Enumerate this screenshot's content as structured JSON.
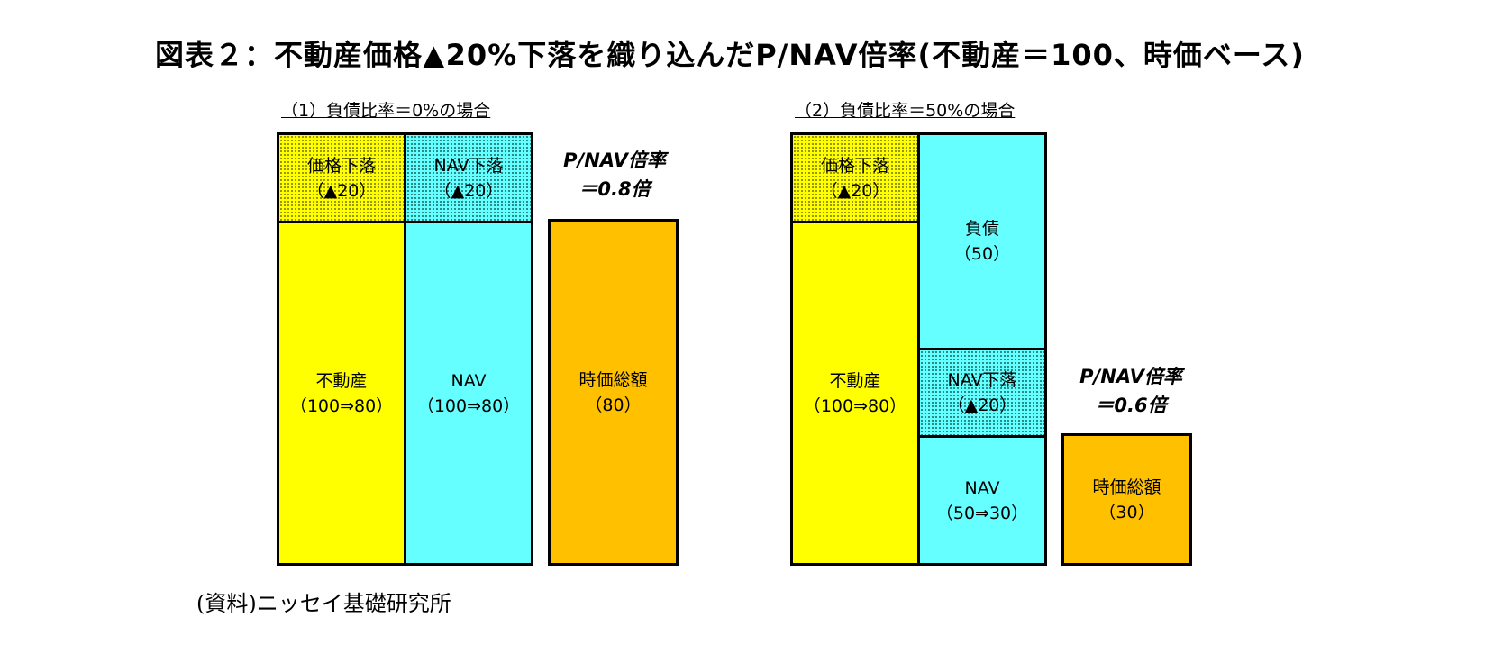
{
  "title": "図表２：不動産価格▲20%下落を織り込んだP/NAV倍率(不動産＝100、時価ベース)",
  "source": "(資料)ニッセイ基礎研究所",
  "colors": {
    "real_estate": "#ffff00",
    "nav_liability": "#66ffff",
    "market_cap": "#ffc000"
  },
  "panel1": {
    "heading": "（1）負債比率＝0%の場合",
    "price_drop": {
      "label": "価格下落",
      "value": "（▲20）"
    },
    "nav_drop": {
      "label": "NAV下落",
      "value": "（▲20）"
    },
    "real_estate": {
      "label": "不動産",
      "value": "（100⇒80）"
    },
    "nav": {
      "label": "NAV",
      "value": "（100⇒80）"
    },
    "market_cap": {
      "label": "時価総額",
      "value": "（80）"
    },
    "ratio": {
      "line1": "P/NAV倍率",
      "line2": "＝0.8倍"
    }
  },
  "panel2": {
    "heading": "（2）負債比率＝50%の場合",
    "price_drop": {
      "label": "価格下落",
      "value": "（▲20）"
    },
    "liability": {
      "label": "負債",
      "value": "（50）"
    },
    "nav_drop": {
      "label": "NAV下落",
      "value": "（▲20）"
    },
    "real_estate": {
      "label": "不動産",
      "value": "（100⇒80）"
    },
    "nav": {
      "label": "NAV",
      "value": "（50⇒30）"
    },
    "market_cap": {
      "label": "時価総額",
      "value": "（30）"
    },
    "ratio": {
      "line1": "P/NAV倍率",
      "line2": "＝0.6倍"
    }
  }
}
